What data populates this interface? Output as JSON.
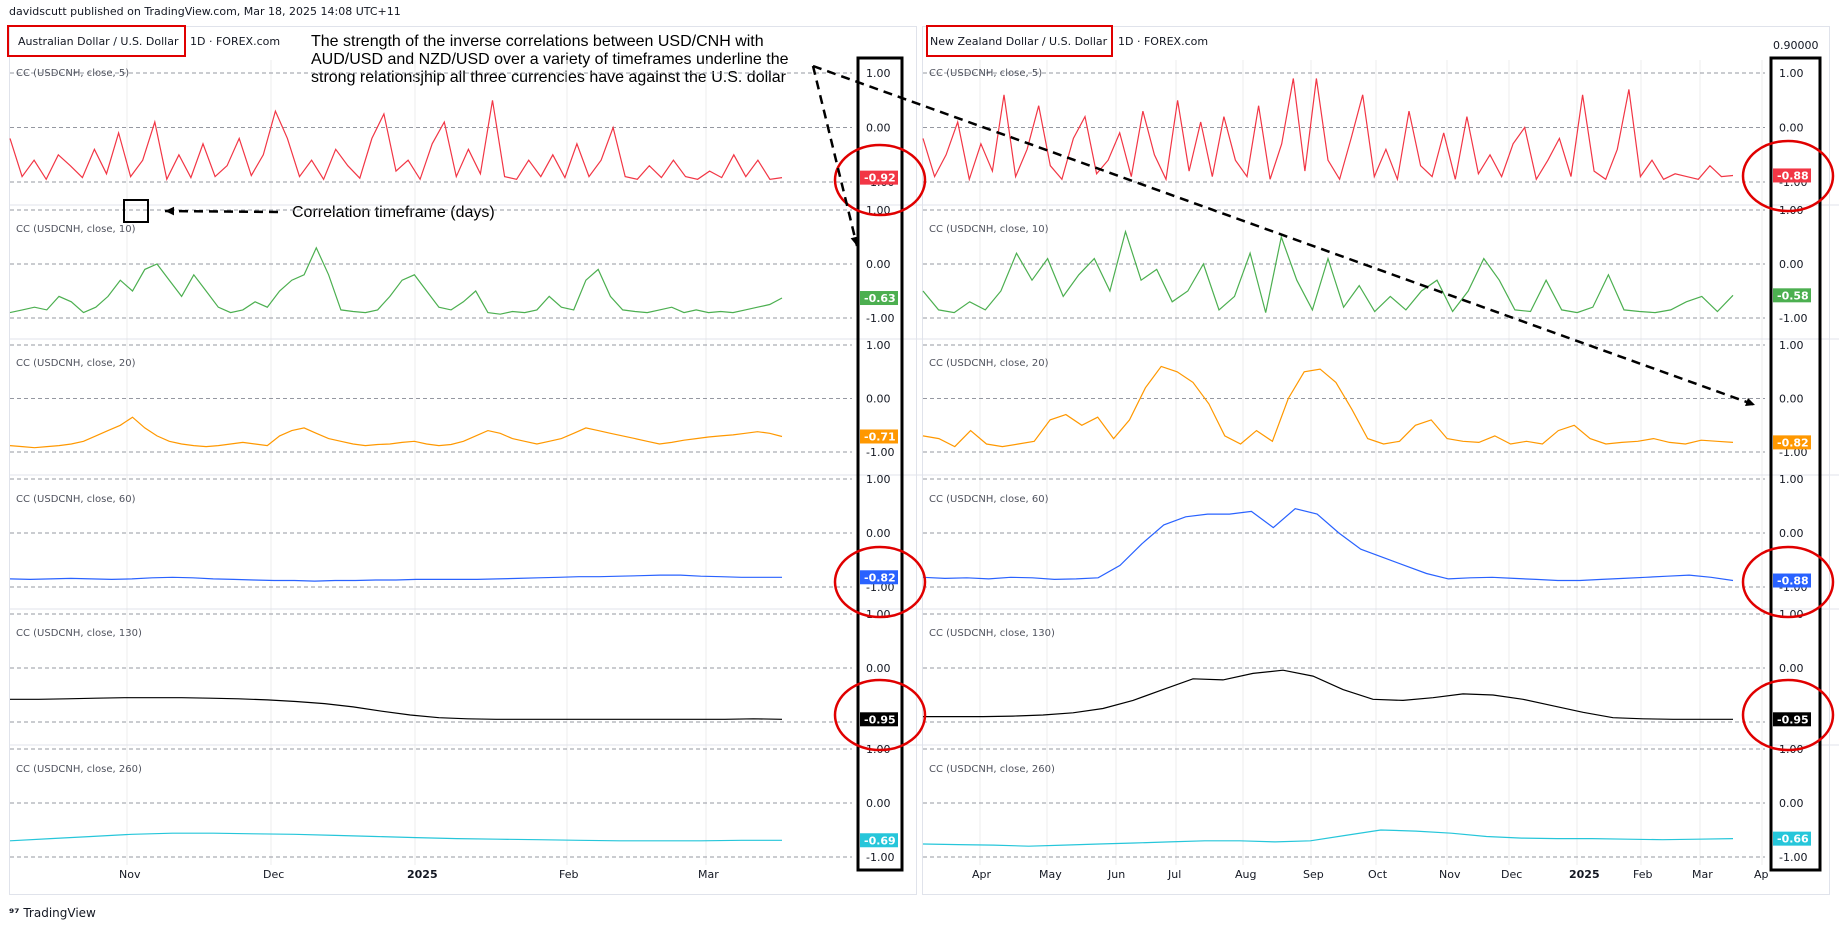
{
  "header": {
    "published": "davidscutt published on TradingView.com, Mar 18, 2025 14:08 UTC+11",
    "watermark": "TradingView"
  },
  "annotations": {
    "headline": "The strength of the inverse correlations between USD/CNH with AUD/USD and NZD/USD over a variety of timeframes underline the strong relationsjhip all three currencies have against the U.S. dollar",
    "timeframe_note": "Correlation timeframe (days)"
  },
  "colors": {
    "line_5": "#f23645",
    "line_10": "#4caf50",
    "line_20": "#ff9800",
    "line_60": "#2962ff",
    "line_130": "#000000",
    "line_260": "#26c6da",
    "highlight": "#e00000",
    "grid": "#ededed"
  },
  "chart_data": [
    {
      "type": "line",
      "title": "Australian Dollar / U.S. Dollar",
      "subtitle": "1D · FOREX.com",
      "x_ticks": [
        "Nov",
        "Dec",
        "2025",
        "Feb",
        "Mar"
      ],
      "pane_axis_labels": [
        "1.00",
        "0.00",
        "-1.00"
      ],
      "panes": [
        {
          "name": "CC (USDCNH, close, 5)",
          "period": 5,
          "last": "-0.92",
          "ylim": [
            -1,
            1
          ],
          "values": [
            -0.2,
            -0.9,
            -0.6,
            -0.95,
            -0.5,
            -0.7,
            -0.92,
            -0.4,
            -0.85,
            -0.1,
            -0.9,
            -0.6,
            0.1,
            -0.95,
            -0.5,
            -0.92,
            -0.3,
            -0.9,
            -0.7,
            -0.2,
            -0.88,
            -0.5,
            0.3,
            -0.2,
            -0.9,
            -0.6,
            -0.95,
            -0.4,
            -0.7,
            -0.93,
            -0.2,
            0.25,
            -0.8,
            -0.6,
            -0.95,
            -0.3,
            0.1,
            -0.9,
            -0.4,
            -0.85,
            0.5,
            -0.9,
            -0.95,
            -0.6,
            -0.9,
            -0.5,
            -0.92,
            -0.3,
            -0.9,
            -0.6,
            0.0,
            -0.9,
            -0.95,
            -0.7,
            -0.92,
            -0.6,
            -0.9,
            -0.95,
            -0.8,
            -0.92,
            -0.5,
            -0.9,
            -0.6,
            -0.95,
            -0.92
          ]
        },
        {
          "name": "CC (USDCNH, close, 10)",
          "period": 10,
          "last": "-0.63",
          "ylim": [
            -1,
            1
          ],
          "values": [
            -0.9,
            -0.85,
            -0.8,
            -0.85,
            -0.6,
            -0.7,
            -0.9,
            -0.8,
            -0.6,
            -0.3,
            -0.5,
            -0.1,
            0.0,
            -0.3,
            -0.6,
            -0.2,
            -0.5,
            -0.8,
            -0.9,
            -0.85,
            -0.7,
            -0.8,
            -0.5,
            -0.3,
            -0.2,
            0.3,
            -0.2,
            -0.85,
            -0.88,
            -0.9,
            -0.85,
            -0.6,
            -0.3,
            -0.2,
            -0.5,
            -0.8,
            -0.85,
            -0.7,
            -0.5,
            -0.9,
            -0.93,
            -0.88,
            -0.9,
            -0.85,
            -0.6,
            -0.8,
            -0.85,
            -0.3,
            -0.1,
            -0.6,
            -0.85,
            -0.88,
            -0.9,
            -0.85,
            -0.8,
            -0.9,
            -0.85,
            -0.9,
            -0.88,
            -0.9,
            -0.85,
            -0.8,
            -0.75,
            -0.63
          ]
        },
        {
          "name": "CC (USDCNH, close, 20)",
          "period": 20,
          "last": "-0.71",
          "ylim": [
            -1,
            1
          ],
          "values": [
            -0.88,
            -0.9,
            -0.92,
            -0.9,
            -0.88,
            -0.85,
            -0.8,
            -0.7,
            -0.6,
            -0.5,
            -0.35,
            -0.55,
            -0.7,
            -0.8,
            -0.85,
            -0.88,
            -0.9,
            -0.88,
            -0.85,
            -0.82,
            -0.85,
            -0.88,
            -0.7,
            -0.6,
            -0.55,
            -0.65,
            -0.75,
            -0.8,
            -0.85,
            -0.88,
            -0.86,
            -0.85,
            -0.82,
            -0.8,
            -0.85,
            -0.88,
            -0.86,
            -0.8,
            -0.7,
            -0.6,
            -0.65,
            -0.75,
            -0.8,
            -0.85,
            -0.8,
            -0.75,
            -0.65,
            -0.55,
            -0.6,
            -0.65,
            -0.7,
            -0.75,
            -0.8,
            -0.85,
            -0.82,
            -0.78,
            -0.75,
            -0.72,
            -0.7,
            -0.68,
            -0.65,
            -0.62,
            -0.65,
            -0.71
          ]
        },
        {
          "name": "CC (USDCNH, close, 60)",
          "period": 60,
          "last": "-0.82",
          "ylim": [
            -1,
            1
          ],
          "values": [
            -0.85,
            -0.86,
            -0.85,
            -0.84,
            -0.85,
            -0.86,
            -0.85,
            -0.83,
            -0.82,
            -0.83,
            -0.85,
            -0.86,
            -0.87,
            -0.88,
            -0.88,
            -0.89,
            -0.88,
            -0.88,
            -0.87,
            -0.87,
            -0.86,
            -0.86,
            -0.86,
            -0.86,
            -0.85,
            -0.84,
            -0.83,
            -0.82,
            -0.81,
            -0.81,
            -0.8,
            -0.79,
            -0.78,
            -0.78,
            -0.8,
            -0.81,
            -0.82,
            -0.82,
            -0.82
          ]
        },
        {
          "name": "CC (USDCNH, close, 130)",
          "period": 130,
          "last": "-0.95",
          "ylim": [
            -1,
            1
          ],
          "values": [
            -0.58,
            -0.58,
            -0.57,
            -0.56,
            -0.55,
            -0.55,
            -0.55,
            -0.56,
            -0.57,
            -0.59,
            -0.62,
            -0.66,
            -0.72,
            -0.8,
            -0.87,
            -0.92,
            -0.94,
            -0.95,
            -0.95,
            -0.95,
            -0.95,
            -0.95,
            -0.95,
            -0.95,
            -0.95,
            -0.95,
            -0.94,
            -0.95
          ]
        },
        {
          "name": "CC (USDCNH, close, 260)",
          "period": 260,
          "last": "-0.69",
          "ylim": [
            -1,
            1
          ],
          "values": [
            -0.7,
            -0.66,
            -0.62,
            -0.58,
            -0.56,
            -0.56,
            -0.57,
            -0.58,
            -0.6,
            -0.62,
            -0.64,
            -0.66,
            -0.67,
            -0.68,
            -0.69,
            -0.7,
            -0.7,
            -0.7,
            -0.69,
            -0.69
          ]
        }
      ]
    },
    {
      "type": "line",
      "title": "New Zealand Dollar / U.S. Dollar",
      "subtitle": "1D · FOREX.com",
      "price_label": "0.90000",
      "x_ticks": [
        "Apr",
        "May",
        "Jun",
        "Jul",
        "Aug",
        "Sep",
        "Oct",
        "Nov",
        "Dec",
        "2025",
        "Feb",
        "Mar",
        "Ap"
      ],
      "pane_axis_labels": [
        "1.00",
        "0.00",
        "-1.00"
      ],
      "panes": [
        {
          "name": "CC (USDCNH, close, 5)",
          "period": 5,
          "last": "-0.88",
          "ylim": [
            -1,
            1
          ],
          "values": [
            -0.2,
            -0.9,
            -0.5,
            0.1,
            -0.95,
            -0.3,
            -0.8,
            0.6,
            -0.9,
            -0.4,
            0.4,
            -0.7,
            -0.95,
            -0.2,
            0.2,
            -0.85,
            -0.6,
            -0.1,
            -0.9,
            0.3,
            -0.5,
            -0.95,
            0.5,
            -0.8,
            0.1,
            -0.9,
            0.2,
            -0.6,
            -0.9,
            0.4,
            -0.95,
            -0.3,
            0.9,
            -0.8,
            0.9,
            -0.6,
            -0.95,
            -0.2,
            0.6,
            -0.9,
            -0.4,
            -0.95,
            0.3,
            -0.7,
            -0.9,
            -0.1,
            -0.95,
            0.2,
            -0.85,
            -0.5,
            -0.9,
            -0.3,
            0.0,
            -0.95,
            -0.6,
            -0.2,
            -0.9,
            0.6,
            -0.8,
            -0.95,
            -0.4,
            0.7,
            -0.9,
            -0.6,
            -0.95,
            -0.85,
            -0.9,
            -0.95,
            -0.7,
            -0.9,
            -0.88
          ]
        },
        {
          "name": "CC (USDCNH, close, 10)",
          "period": 10,
          "last": "-0.58",
          "ylim": [
            -1,
            1
          ],
          "values": [
            -0.5,
            -0.85,
            -0.9,
            -0.7,
            -0.85,
            -0.5,
            0.2,
            -0.3,
            0.1,
            -0.6,
            -0.2,
            0.1,
            -0.5,
            0.6,
            -0.3,
            -0.1,
            -0.7,
            -0.5,
            0.0,
            -0.85,
            -0.6,
            0.2,
            -0.9,
            0.5,
            -0.3,
            -0.85,
            0.1,
            -0.8,
            -0.4,
            -0.88,
            -0.6,
            -0.85,
            -0.5,
            -0.3,
            -0.88,
            -0.5,
            0.1,
            -0.3,
            -0.85,
            -0.88,
            -0.3,
            -0.85,
            -0.9,
            -0.8,
            -0.2,
            -0.85,
            -0.88,
            -0.9,
            -0.85,
            -0.7,
            -0.6,
            -0.88,
            -0.58
          ]
        },
        {
          "name": "CC (USDCNH, close, 20)",
          "period": 20,
          "last": "-0.82",
          "ylim": [
            -1,
            1
          ],
          "values": [
            -0.7,
            -0.75,
            -0.9,
            -0.6,
            -0.85,
            -0.9,
            -0.85,
            -0.8,
            -0.4,
            -0.3,
            -0.5,
            -0.35,
            -0.75,
            -0.4,
            0.2,
            0.6,
            0.5,
            0.3,
            -0.1,
            -0.7,
            -0.85,
            -0.6,
            -0.8,
            0.0,
            0.5,
            0.55,
            0.3,
            -0.2,
            -0.75,
            -0.85,
            -0.8,
            -0.5,
            -0.4,
            -0.75,
            -0.8,
            -0.82,
            -0.7,
            -0.85,
            -0.8,
            -0.85,
            -0.6,
            -0.5,
            -0.75,
            -0.85,
            -0.82,
            -0.8,
            -0.75,
            -0.82,
            -0.85,
            -0.78,
            -0.8,
            -0.82
          ]
        },
        {
          "name": "CC (USDCNH, close, 60)",
          "period": 60,
          "last": "-0.88",
          "ylim": [
            -1,
            1
          ],
          "values": [
            -0.82,
            -0.84,
            -0.83,
            -0.85,
            -0.82,
            -0.83,
            -0.86,
            -0.85,
            -0.83,
            -0.6,
            -0.2,
            0.15,
            0.3,
            0.35,
            0.35,
            0.4,
            0.1,
            0.45,
            0.35,
            0.0,
            -0.3,
            -0.45,
            -0.6,
            -0.75,
            -0.85,
            -0.83,
            -0.82,
            -0.84,
            -0.86,
            -0.88,
            -0.88,
            -0.86,
            -0.84,
            -0.82,
            -0.8,
            -0.78,
            -0.82,
            -0.88
          ]
        },
        {
          "name": "CC (USDCNH, close, 130)",
          "period": 130,
          "last": "-0.95",
          "ylim": [
            -1,
            1
          ],
          "values": [
            -0.9,
            -0.9,
            -0.9,
            -0.89,
            -0.87,
            -0.83,
            -0.75,
            -0.6,
            -0.4,
            -0.2,
            -0.22,
            -0.1,
            -0.04,
            -0.15,
            -0.4,
            -0.58,
            -0.6,
            -0.55,
            -0.48,
            -0.5,
            -0.58,
            -0.7,
            -0.82,
            -0.92,
            -0.94,
            -0.95,
            -0.95,
            -0.95
          ]
        },
        {
          "name": "CC (USDCNH, close, 260)",
          "period": 260,
          "last": "-0.66",
          "ylim": [
            -1,
            1
          ],
          "values": [
            -0.76,
            -0.77,
            -0.78,
            -0.8,
            -0.78,
            -0.76,
            -0.74,
            -0.72,
            -0.7,
            -0.7,
            -0.72,
            -0.7,
            -0.6,
            -0.5,
            -0.52,
            -0.56,
            -0.62,
            -0.65,
            -0.66,
            -0.66,
            -0.67,
            -0.68,
            -0.67,
            -0.66
          ]
        }
      ]
    }
  ]
}
